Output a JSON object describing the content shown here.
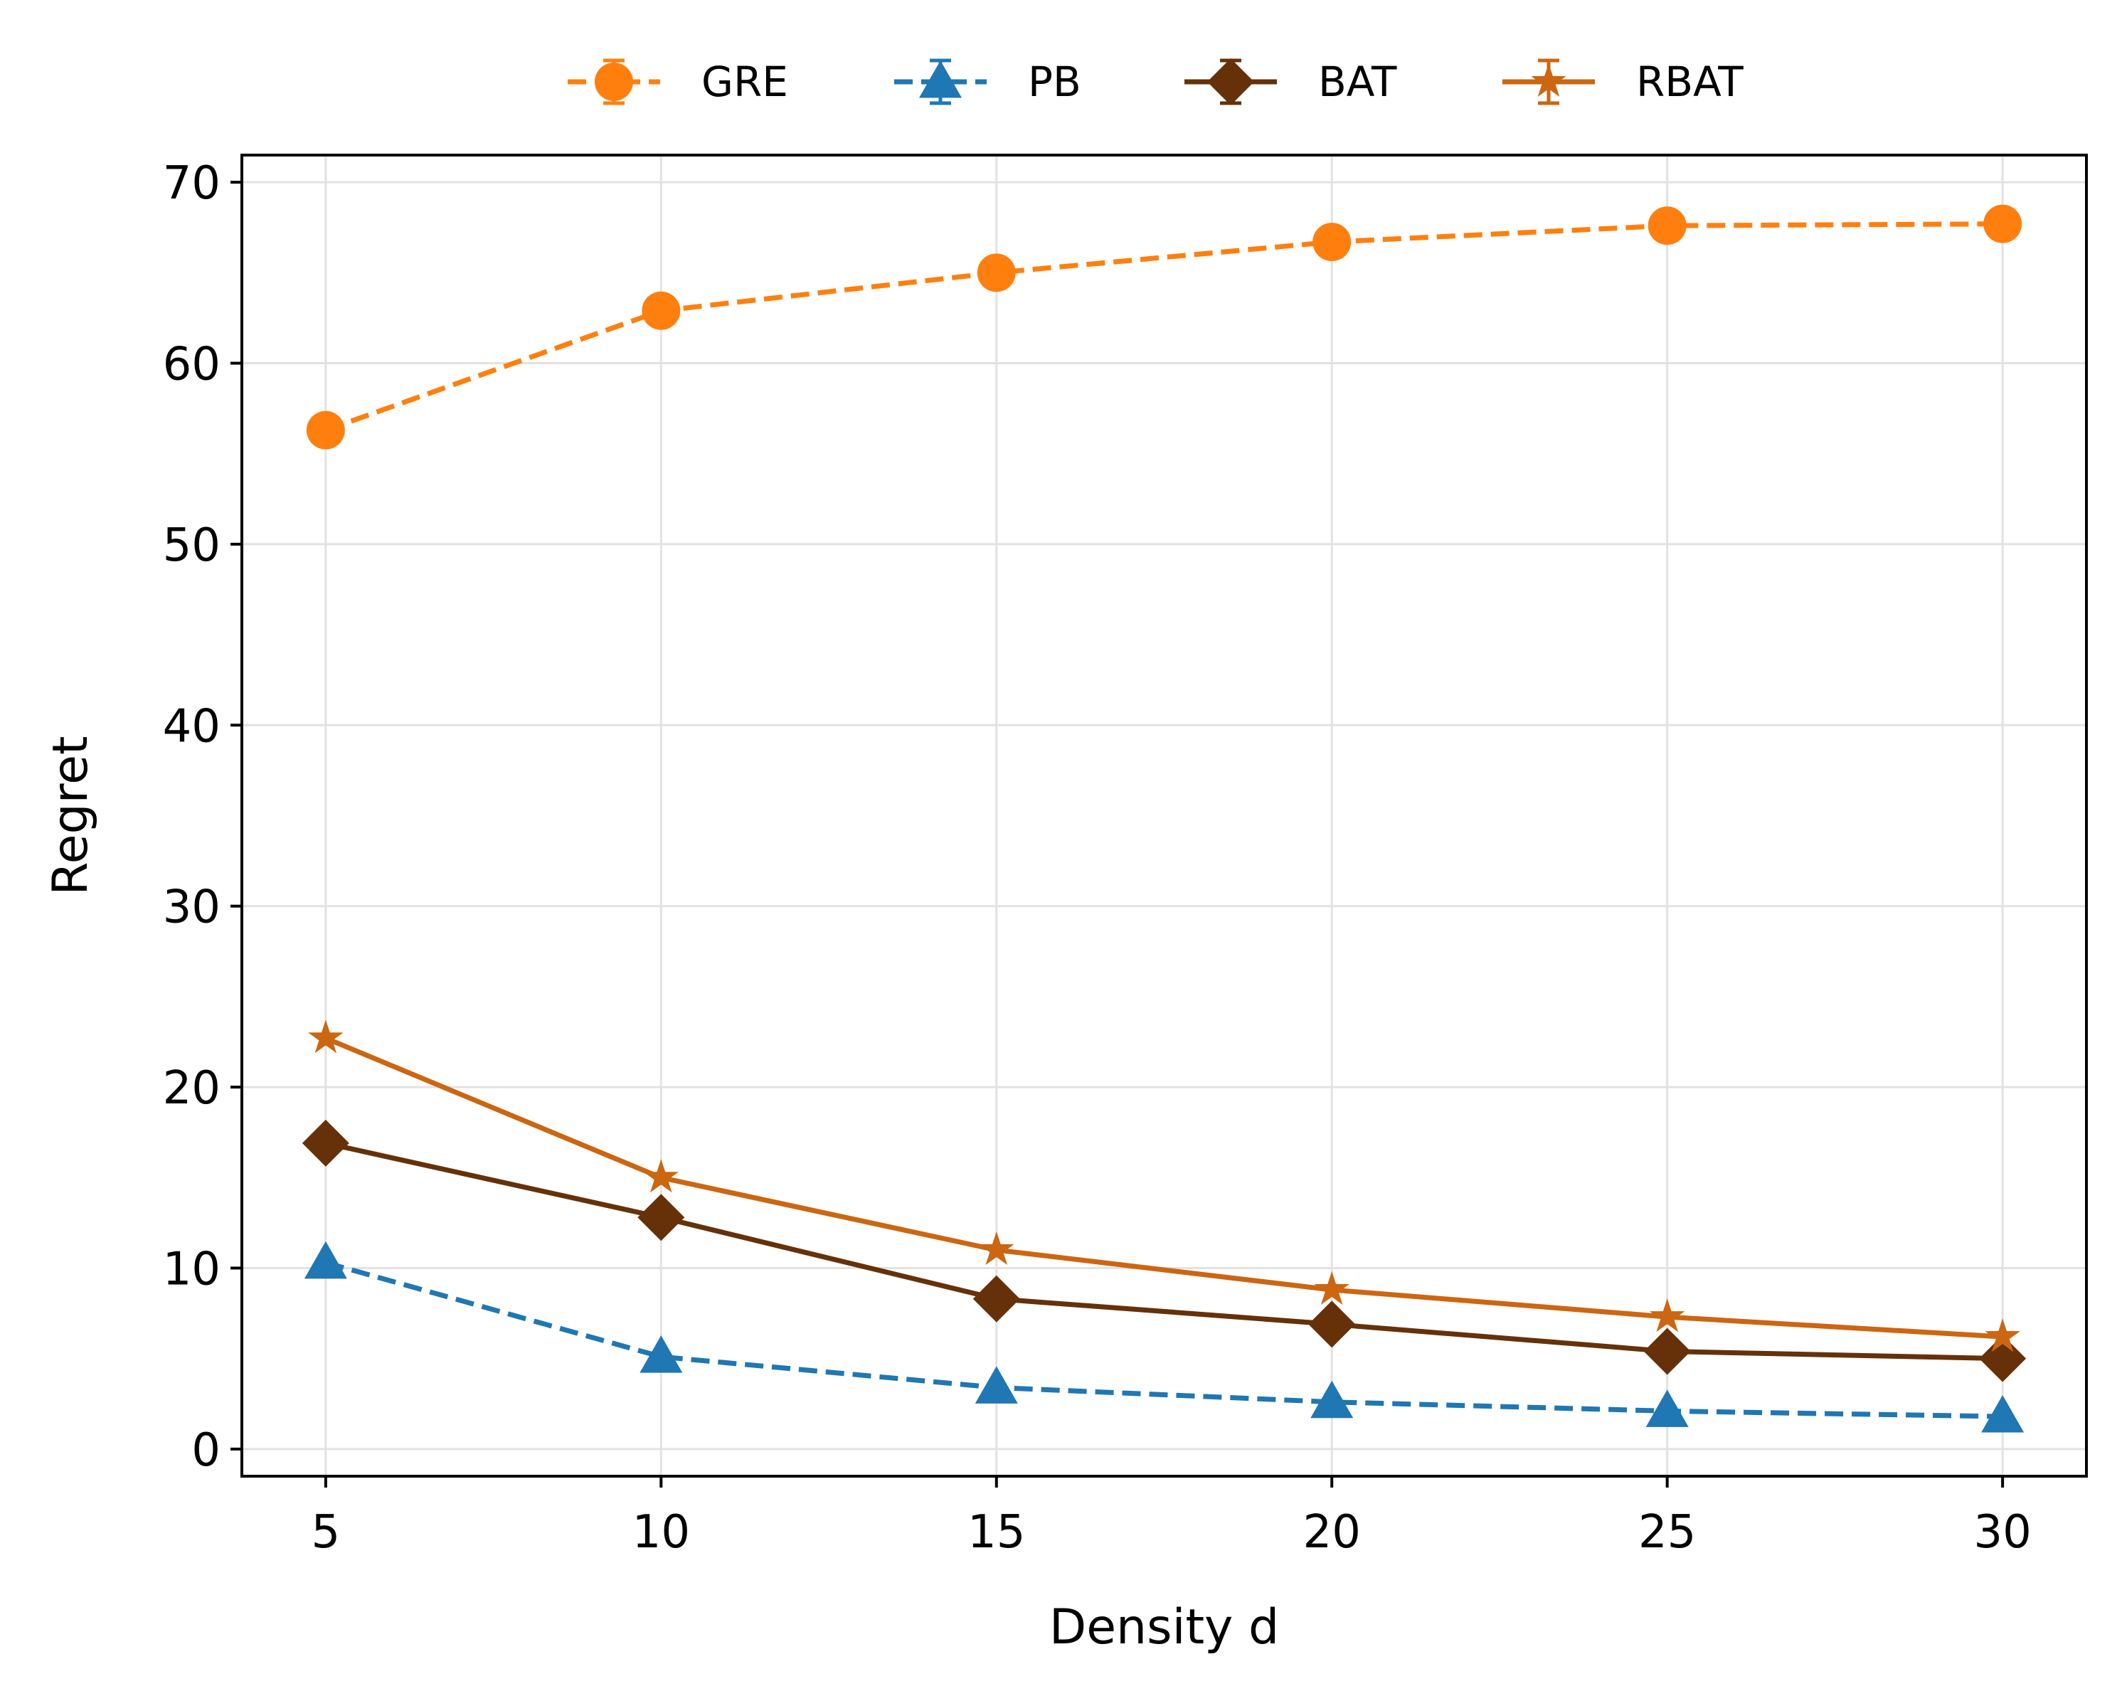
{
  "chart_data": {
    "type": "line",
    "xlabel": "Density d",
    "ylabel": "Regret",
    "x": [
      5,
      10,
      15,
      20,
      25,
      30
    ],
    "xlim": [
      3.75,
      31.25
    ],
    "ylim": [
      -1.5,
      71.5
    ],
    "xticks": [
      5,
      10,
      15,
      20,
      25,
      30
    ],
    "yticks": [
      0,
      10,
      20,
      30,
      40,
      50,
      60,
      70
    ],
    "grid": true,
    "legend_position": "top-center",
    "series": [
      {
        "name": "GRE",
        "values": [
          56.3,
          62.9,
          65.0,
          66.7,
          67.6,
          67.7
        ],
        "color": "#ff7f0e",
        "linestyle": "dashed",
        "marker": "circle"
      },
      {
        "name": "PB",
        "values": [
          10.3,
          5.1,
          3.4,
          2.6,
          2.1,
          1.8
        ],
        "color": "#1f77b4",
        "linestyle": "dashed",
        "marker": "triangle"
      },
      {
        "name": "BAT",
        "values": [
          16.9,
          12.8,
          8.3,
          6.9,
          5.4,
          5.0
        ],
        "color": "#663109",
        "linestyle": "solid",
        "marker": "diamond"
      },
      {
        "name": "RBAT",
        "values": [
          22.7,
          15.0,
          11.0,
          8.8,
          7.3,
          6.2
        ],
        "color": "#cc6611",
        "linestyle": "solid",
        "marker": "star"
      }
    ]
  }
}
